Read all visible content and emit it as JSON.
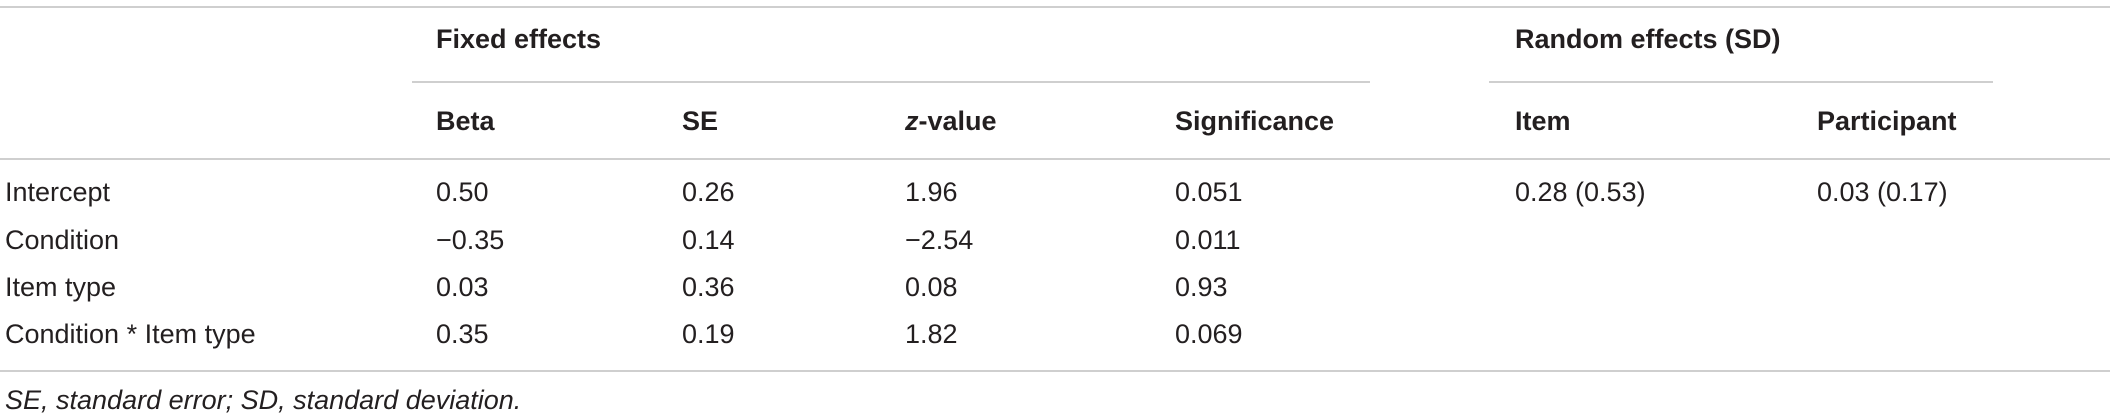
{
  "table": {
    "group_headers": [
      "Fixed effects",
      "Random effects (SD)"
    ],
    "columns": [
      "Beta",
      "SE",
      {
        "italic": "z",
        "rest": "-value"
      },
      "Significance",
      "Item",
      "Participant"
    ],
    "rows": [
      [
        "Intercept",
        "0.50",
        "0.26",
        "1.96",
        "0.051",
        "0.28 (0.53)",
        "0.03 (0.17)"
      ],
      [
        "Condition",
        "−0.35",
        "0.14",
        "−2.54",
        "0.011"
      ],
      [
        "Item type",
        "0.03",
        "0.36",
        "0.08",
        "0.93"
      ],
      [
        "Condition * Item type",
        "0.35",
        "0.19",
        "1.82",
        "0.069"
      ]
    ],
    "footnote": "SE, standard error; SD, standard deviation."
  }
}
